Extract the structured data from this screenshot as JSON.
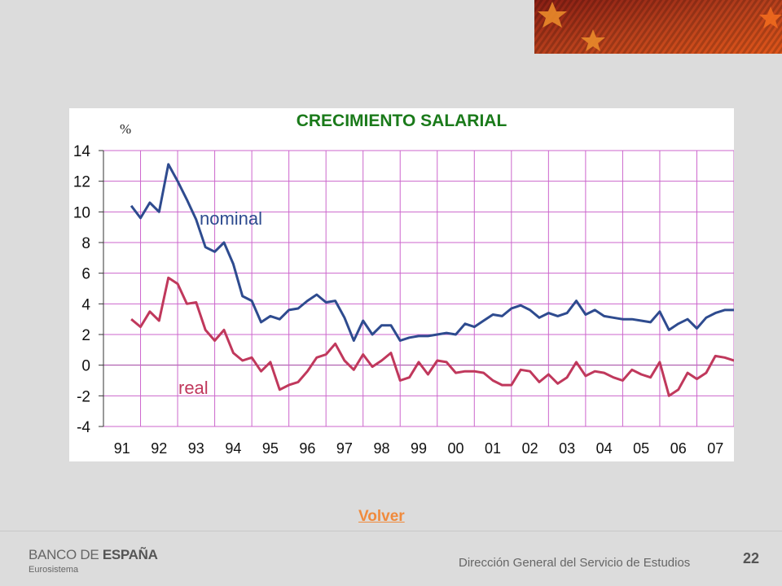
{
  "colors": {
    "nominal": "#2e4b8f",
    "real": "#c0385c",
    "title": "#1a7a1a",
    "grid": "#cc66cc",
    "link": "#f08a3c"
  },
  "chart_data": {
    "type": "line",
    "title": "CRECIMIENTO SALARIAL",
    "unit_label": "%",
    "ylim": [
      -4,
      14
    ],
    "yticks": [
      14,
      12,
      10,
      8,
      6,
      4,
      2,
      0,
      -2,
      -4
    ],
    "xtick_labels": [
      "91",
      "92",
      "93",
      "94",
      "95",
      "96",
      "97",
      "98",
      "99",
      "00",
      "01",
      "02",
      "03",
      "04",
      "05",
      "06",
      "07"
    ],
    "grid": true,
    "series": [
      {
        "name": "nominal",
        "values": [
          10.4,
          9.6,
          10.6,
          10.0,
          13.1,
          12.0,
          10.8,
          9.5,
          7.7,
          7.4,
          8.0,
          6.6,
          4.5,
          4.2,
          2.8,
          3.2,
          3.0,
          3.6,
          3.7,
          4.2,
          4.6,
          4.1,
          4.2,
          3.1,
          1.6,
          2.9,
          2.0,
          2.6,
          2.6,
          1.6,
          1.8,
          1.9,
          1.9,
          2.0,
          2.1,
          2.0,
          2.7,
          2.5,
          2.9,
          3.3,
          3.2,
          3.7,
          3.9,
          3.6,
          3.1,
          3.4,
          3.2,
          3.4,
          4.2,
          3.3,
          3.6,
          3.2,
          3.1,
          3.0,
          3.0,
          2.9,
          2.8,
          3.5,
          2.3,
          2.7,
          3.0,
          2.4,
          3.1,
          3.4,
          3.6,
          3.6,
          3.7
        ]
      },
      {
        "name": "real",
        "values": [
          3.0,
          2.5,
          3.5,
          2.9,
          5.7,
          5.3,
          4.0,
          4.1,
          2.3,
          1.6,
          2.3,
          0.8,
          0.3,
          0.5,
          -0.4,
          0.2,
          -1.6,
          -1.3,
          -1.1,
          -0.4,
          0.5,
          0.7,
          1.4,
          0.3,
          -0.3,
          0.7,
          -0.1,
          0.3,
          0.8,
          -1.0,
          -0.8,
          0.2,
          -0.6,
          0.3,
          0.2,
          -0.5,
          -0.4,
          -0.4,
          -0.5,
          -1.0,
          -1.3,
          -1.3,
          -0.3,
          -0.4,
          -1.1,
          -0.6,
          -1.2,
          -0.8,
          0.2,
          -0.7,
          -0.4,
          -0.5,
          -0.8,
          -1.0,
          -0.3,
          -0.6,
          -0.8,
          0.2,
          -2.0,
          -1.6,
          -0.5,
          -0.9,
          -0.5,
          0.6,
          0.5,
          0.3,
          0.3
        ]
      }
    ],
    "series_start": 90.75,
    "series_step": 0.25
  },
  "footer": {
    "back_link": "Volver",
    "logo_prefix": "BANCO DE ",
    "logo_bold": "ESPAÑA",
    "logo_sub": "Eurosistema",
    "department": "Dirección General del Servicio de Estudios",
    "page_number": "22"
  }
}
